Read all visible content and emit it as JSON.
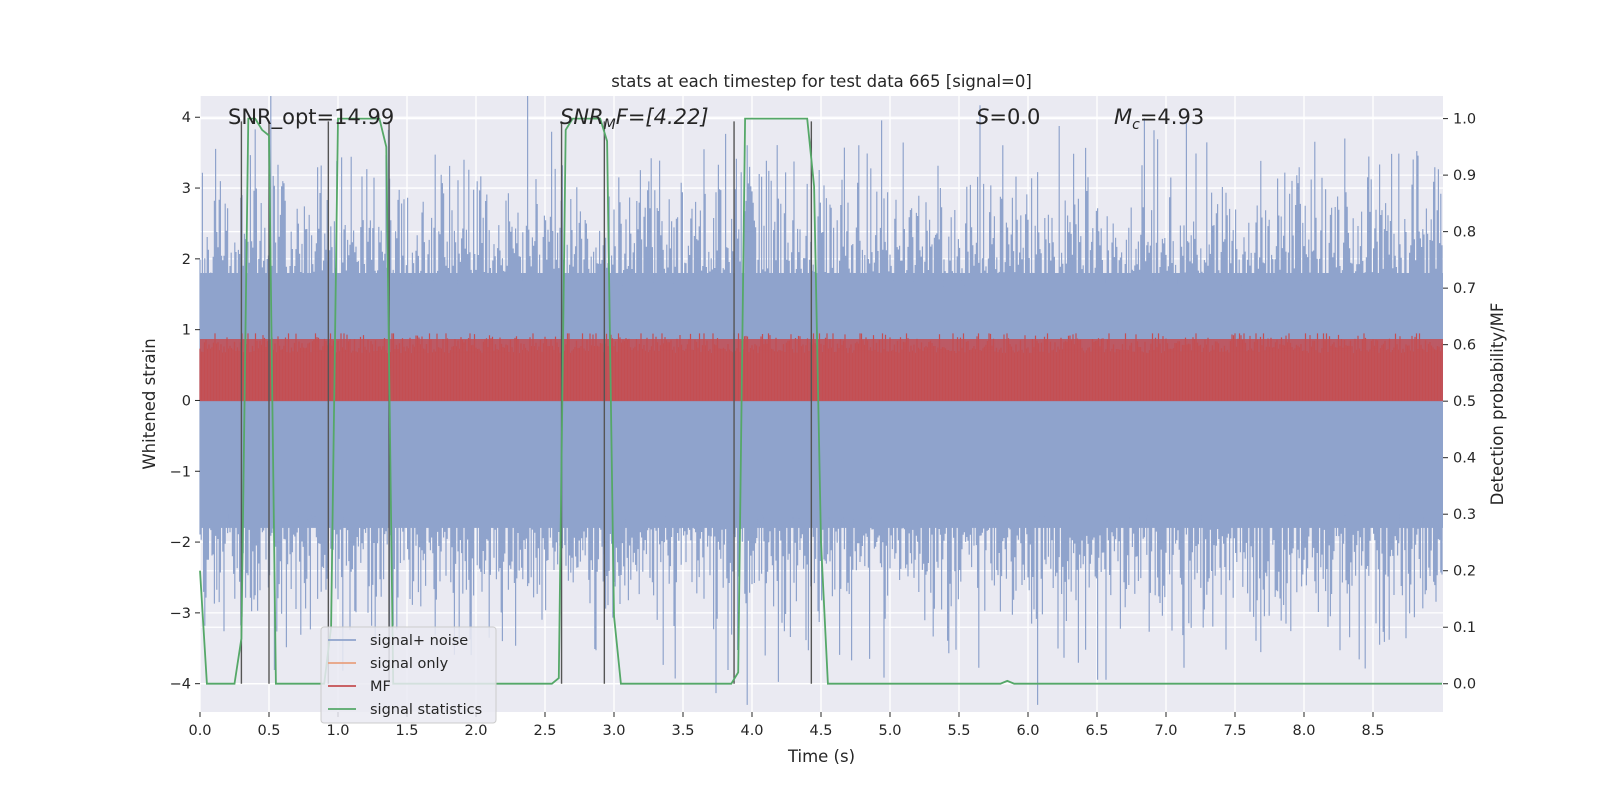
{
  "chart_data": {
    "type": "line",
    "title": "stats at each timestep for test data 665 [signal=0]",
    "xlabel": "Time (s)",
    "ylabel": "Whitened strain",
    "ylabel_right": "Detection probability/MF",
    "xlim": [
      0,
      9.0
    ],
    "ylim": [
      -4.4,
      4.3
    ],
    "ylim_right": [
      -0.05,
      1.04
    ],
    "x_ticks": [
      0.0,
      0.5,
      1.0,
      1.5,
      2.0,
      2.5,
      3.0,
      3.5,
      4.0,
      4.5,
      5.0,
      5.5,
      6.0,
      6.5,
      7.0,
      7.5,
      8.0,
      8.5
    ],
    "x_tick_labels": [
      "0.0",
      "0.5",
      "1.0",
      "1.5",
      "2.0",
      "2.5",
      "3.0",
      "3.5",
      "4.0",
      "4.5",
      "5.0",
      "5.5",
      "6.0",
      "6.5",
      "7.0",
      "7.5",
      "8.0",
      "8.5"
    ],
    "y_ticks": [
      -4,
      -3,
      -2,
      -1,
      0,
      1,
      2,
      3,
      4
    ],
    "y_tick_labels": [
      "−4",
      "−3",
      "−2",
      "−1",
      "0",
      "1",
      "2",
      "3",
      "4"
    ],
    "y_right_ticks": [
      0.0,
      0.1,
      0.2,
      0.3,
      0.4,
      0.5,
      0.6,
      0.7,
      0.8,
      0.9,
      1.0
    ],
    "y_right_tick_labels": [
      "0.0",
      "0.1",
      "0.2",
      "0.3",
      "0.4",
      "0.5",
      "0.6",
      "0.7",
      "0.8",
      "0.9",
      "1.0"
    ],
    "grid": true,
    "legend_position": "lower-left",
    "annotations": {
      "snr_opt": "SNR_opt=14.99",
      "snr_mf_base": "SNR",
      "snr_mf_sub": "M",
      "snr_mf_rest": "F=[4.22]",
      "s_var": "S",
      "s_rest": "=0.0",
      "mc_var": "M",
      "mc_sub": "c",
      "mc_rest": "=4.93"
    },
    "series": [
      {
        "name": "signal+ noise",
        "color": "#8fa3cc",
        "axis": "left",
        "band": [
          -1.8,
          1.8
        ],
        "max_abs": 4.3
      },
      {
        "name": "signal only",
        "color": "#e8a07f",
        "axis": "left",
        "values": []
      },
      {
        "name": "MF",
        "color": "#c44e52",
        "axis": "right",
        "band": [
          0.5,
          0.61
        ],
        "max": 0.62
      },
      {
        "name": "signal statistics",
        "color": "#55a868",
        "axis": "right",
        "x": [
          0.0,
          0.05,
          0.1,
          0.25,
          0.3,
          0.35,
          0.4,
          0.45,
          0.5,
          0.55,
          0.6,
          0.9,
          0.95,
          1.0,
          1.3,
          1.35,
          1.4,
          1.45,
          2.55,
          2.6,
          2.65,
          2.7,
          2.9,
          2.95,
          3.0,
          3.05,
          3.1,
          3.85,
          3.9,
          3.95,
          4.4,
          4.45,
          4.5,
          4.55,
          4.6,
          5.8,
          5.85,
          5.9,
          9.0
        ],
        "y": [
          0.2,
          0.0,
          0.0,
          0.0,
          0.08,
          1.0,
          1.0,
          0.98,
          0.97,
          0.0,
          0.0,
          0.0,
          0.1,
          1.0,
          1.0,
          0.95,
          0.0,
          0.0,
          0.0,
          0.01,
          0.98,
          1.0,
          1.0,
          0.96,
          0.12,
          0.0,
          0.0,
          0.0,
          0.02,
          1.0,
          1.0,
          0.88,
          0.25,
          0.0,
          0.0,
          0.0,
          0.005,
          0.0,
          0.0
        ]
      }
    ],
    "vertical_lines_x": [
      0.3,
      0.5,
      0.93,
      1.37,
      2.62,
      2.93,
      3.87,
      4.43
    ]
  }
}
